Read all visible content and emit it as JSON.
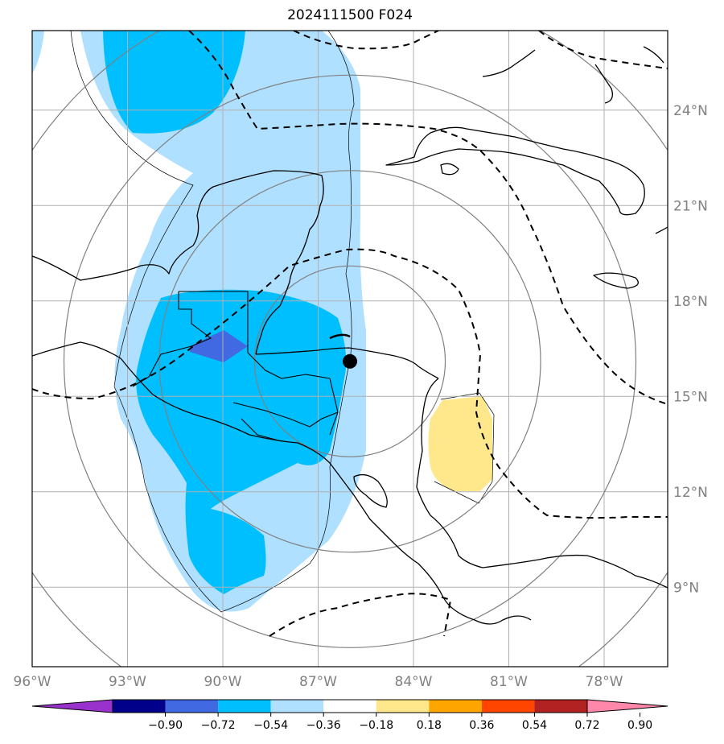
{
  "title": "2024111500 F024",
  "map": {
    "lon_min": -96,
    "lon_max": -76,
    "lat_min": 6.5,
    "lat_max": 26.5,
    "center_marker": {
      "lon": -86.0,
      "lat": 16.1
    },
    "range_ring_radii_deg": [
      3,
      6,
      9,
      12
    ],
    "lon_ticks": [
      {
        "value": -96,
        "label": "96°W"
      },
      {
        "value": -93,
        "label": "93°W"
      },
      {
        "value": -90,
        "label": "90°W"
      },
      {
        "value": -87,
        "label": "87°W"
      },
      {
        "value": -84,
        "label": "84°W"
      },
      {
        "value": -81,
        "label": "81°W"
      },
      {
        "value": -78,
        "label": "78°W"
      }
    ],
    "lat_ticks": [
      {
        "value": 24,
        "label": "24°N"
      },
      {
        "value": 21,
        "label": "21°N"
      },
      {
        "value": 18,
        "label": "18°N"
      },
      {
        "value": 15,
        "label": "15°N"
      },
      {
        "value": 12,
        "label": "12°N"
      },
      {
        "value": 9,
        "label": "9°N"
      }
    ],
    "colors": {
      "light_blue": "#b0e0ff",
      "medium_blue": "#00bfff",
      "royal_blue": "#4169e1",
      "yellow": "#ffe88c",
      "land_outline": "#000000",
      "grid": "#b0b0b0",
      "rings": "#808080",
      "tick_labels": "#808080"
    }
  },
  "colorbar": {
    "labels": [
      "−0.90",
      "−0.72",
      "−0.54",
      "−0.36",
      "−0.18",
      "0.18",
      "0.36",
      "0.54",
      "0.72",
      "0.90"
    ],
    "colors": [
      "#9932cc",
      "#00008b",
      "#4169e1",
      "#00bfff",
      "#b0e0ff",
      "#ffffff",
      "#ffe88c",
      "#ffa500",
      "#ff4500",
      "#b22222",
      "#ff88aa"
    ]
  }
}
